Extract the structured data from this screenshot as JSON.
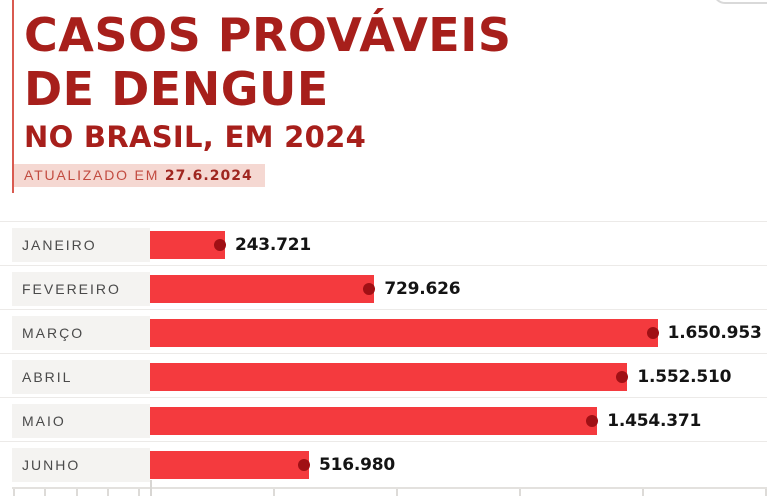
{
  "header": {
    "title_line1": "CASOS PROVÁVEIS",
    "title_line2": "DE DENGUE",
    "subtitle": "NO BRASIL, EM 2024",
    "updated_label": "ATUALIZADO EM",
    "updated_date": "27.6.2024"
  },
  "colors": {
    "title_red": "#a71f1b",
    "accent_rule": "#d95a50",
    "badge_background": "#f5d8d2",
    "badge_label": "#c24b40",
    "badge_date": "#9f2620",
    "bar_red": "#f43a3e",
    "dot_dark_red": "#a01015",
    "month_label_gray": "#4a4a4a",
    "row_band_gray": "#f4f3f1"
  },
  "chart_data": {
    "type": "bar",
    "orientation": "horizontal",
    "title": "CASOS PROVÁVEIS DE DENGUE NO BRASIL, EM 2024",
    "subtitle_note": "ATUALIZADO EM 27.6.2024",
    "categories": [
      "JANEIRO",
      "FEVEREIRO",
      "MARÇO",
      "ABRIL",
      "MAIO",
      "JUNHO"
    ],
    "values": [
      243721,
      729626,
      1650953,
      1552510,
      1454371,
      516980
    ],
    "value_labels": [
      "243.721",
      "729.626",
      "1.650.953",
      "1.552.510",
      "1.454.371",
      "516.980"
    ],
    "xlabel": "",
    "ylabel": "",
    "xlim": [
      0,
      2000000
    ],
    "bar_color": "#f43a3e",
    "dot_color": "#a01015",
    "legend": "none",
    "grid": "horizontal row separators, bottom axis ticks (labels cropped)"
  }
}
